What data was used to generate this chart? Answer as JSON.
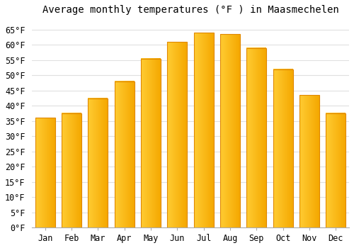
{
  "title": "Average monthly temperatures (°F ) in Maasmechelen",
  "months": [
    "Jan",
    "Feb",
    "Mar",
    "Apr",
    "May",
    "Jun",
    "Jul",
    "Aug",
    "Sep",
    "Oct",
    "Nov",
    "Dec"
  ],
  "values": [
    36.0,
    37.5,
    42.5,
    48.0,
    55.5,
    61.0,
    64.0,
    63.5,
    59.0,
    52.0,
    43.5,
    37.5
  ],
  "bar_color_left": "#FFCC33",
  "bar_color_right": "#F5A800",
  "bar_edge_color": "#E08800",
  "background_color": "#FFFFFF",
  "grid_color": "#E0E0E0",
  "ylim": [
    0,
    68
  ],
  "yticks": [
    0,
    5,
    10,
    15,
    20,
    25,
    30,
    35,
    40,
    45,
    50,
    55,
    60,
    65
  ],
  "title_fontsize": 10,
  "tick_fontsize": 8.5,
  "font_family": "monospace"
}
